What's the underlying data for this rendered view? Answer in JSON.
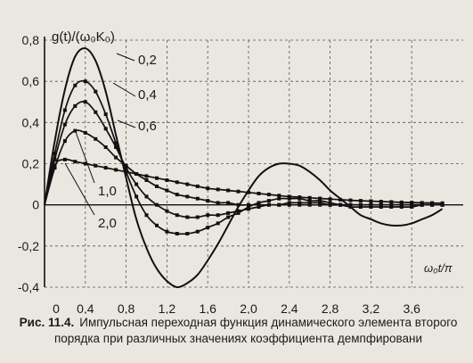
{
  "chart_data": {
    "type": "line",
    "ylabel": "g(t)/(ω₀K₀)",
    "xlabel": "ω₀t/π",
    "xlim": [
      0,
      4
    ],
    "ylim": [
      -0.4,
      0.8
    ],
    "x_ticks": [
      "0",
      "0,4",
      "0,8",
      "1,2",
      "1,6",
      "2,0",
      "2,4",
      "2,8",
      "3,2",
      "3,6"
    ],
    "y_ticks": [
      "0,8",
      "0,6",
      "0,4",
      "0,2",
      "0",
      "-0,2",
      "-0,4"
    ],
    "grid": true,
    "series": [
      {
        "name": "0,2",
        "x": [
          0,
          0.1,
          0.2,
          0.3,
          0.4,
          0.5,
          0.6,
          0.7,
          0.8,
          0.9,
          1.0,
          1.1,
          1.2,
          1.3,
          1.4,
          1.5,
          1.6,
          1.7,
          1.8,
          1.9,
          2.0,
          2.1,
          2.2,
          2.3,
          2.4,
          2.5,
          2.6,
          2.7,
          2.8,
          2.9,
          3.0,
          3.1,
          3.2,
          3.3,
          3.4,
          3.5,
          3.6,
          3.7,
          3.8,
          3.9
        ],
        "values": [
          0,
          0.31,
          0.56,
          0.72,
          0.76,
          0.7,
          0.55,
          0.34,
          0.13,
          -0.07,
          -0.21,
          -0.31,
          -0.37,
          -0.4,
          -0.38,
          -0.34,
          -0.27,
          -0.19,
          -0.1,
          -0.01,
          0.07,
          0.14,
          0.18,
          0.2,
          0.2,
          0.19,
          0.16,
          0.12,
          0.07,
          0.03,
          -0.01,
          -0.05,
          -0.07,
          -0.09,
          -0.1,
          -0.1,
          -0.09,
          -0.07,
          -0.05,
          -0.02
        ],
        "markers": false
      },
      {
        "name": "0,4",
        "x": [
          0,
          0.1,
          0.2,
          0.3,
          0.4,
          0.5,
          0.6,
          0.7,
          0.8,
          0.9,
          1.0,
          1.1,
          1.2,
          1.3,
          1.4,
          1.5,
          1.6,
          1.7,
          1.8,
          1.9,
          2.0,
          2.1,
          2.2,
          2.3,
          2.4,
          2.5,
          2.6,
          2.7,
          2.8,
          2.9,
          3.0,
          3.1,
          3.2,
          3.3,
          3.4,
          3.5,
          3.6,
          3.7,
          3.8,
          3.9
        ],
        "values": [
          0,
          0.25,
          0.46,
          0.58,
          0.6,
          0.55,
          0.44,
          0.3,
          0.16,
          0.04,
          -0.05,
          -0.1,
          -0.13,
          -0.14,
          -0.14,
          -0.13,
          -0.11,
          -0.09,
          -0.06,
          -0.04,
          -0.01,
          0.01,
          0.02,
          0.03,
          0.03,
          0.03,
          0.02,
          0.02,
          0.01,
          0.0,
          -0.01,
          -0.01,
          -0.01,
          -0.01,
          -0.01,
          -0.01,
          -0.01,
          0.0,
          0.0,
          0.0
        ],
        "markers": true
      },
      {
        "name": "0,6",
        "x": [
          0,
          0.1,
          0.2,
          0.3,
          0.4,
          0.5,
          0.6,
          0.7,
          0.8,
          0.9,
          1.0,
          1.1,
          1.2,
          1.3,
          1.4,
          1.5,
          1.6,
          1.7,
          1.8,
          1.9,
          2.0,
          2.1,
          2.2,
          2.3,
          2.4,
          2.5,
          2.6,
          2.7,
          2.8,
          2.9,
          3.0,
          3.1,
          3.2,
          3.3,
          3.4,
          3.5,
          3.6,
          3.7,
          3.8,
          3.9
        ],
        "values": [
          0,
          0.22,
          0.39,
          0.48,
          0.5,
          0.45,
          0.37,
          0.28,
          0.18,
          0.1,
          0.04,
          0.0,
          -0.03,
          -0.05,
          -0.06,
          -0.06,
          -0.05,
          -0.05,
          -0.04,
          -0.03,
          -0.02,
          -0.01,
          0.0,
          0.0,
          0.01,
          0.01,
          0.01,
          0.01,
          0.0,
          0.0,
          0.0,
          0.0,
          0.0,
          0.0,
          0.0,
          0.0,
          0.0,
          0.0,
          0.0,
          0.0
        ],
        "markers": true
      },
      {
        "name": "1,0",
        "x": [
          0,
          0.1,
          0.2,
          0.3,
          0.4,
          0.5,
          0.6,
          0.7,
          0.8,
          0.9,
          1.0,
          1.1,
          1.2,
          1.3,
          1.4,
          1.5,
          1.6,
          1.7,
          1.8,
          1.9,
          2.0,
          2.1,
          2.2,
          2.3,
          2.4,
          2.5,
          2.6,
          2.7,
          2.8,
          2.9,
          3.0,
          3.1,
          3.2,
          3.3,
          3.4,
          3.5,
          3.6,
          3.7,
          3.8,
          3.9
        ],
        "values": [
          0,
          0.18,
          0.31,
          0.36,
          0.35,
          0.32,
          0.28,
          0.23,
          0.19,
          0.15,
          0.12,
          0.09,
          0.07,
          0.05,
          0.04,
          0.03,
          0.02,
          0.01,
          0.01,
          0.0,
          0.0,
          0.0,
          0.0,
          0.0,
          0.0,
          0.0,
          0.0,
          0.0,
          0.0,
          0.0,
          0.0,
          0.0,
          0.0,
          0.0,
          0.0,
          0.0,
          0.0,
          0.0,
          0.0,
          0.0
        ],
        "markers": true
      },
      {
        "name": "2,0",
        "x": [
          0,
          0.1,
          0.2,
          0.3,
          0.4,
          0.5,
          0.6,
          0.7,
          0.8,
          0.9,
          1.0,
          1.1,
          1.2,
          1.3,
          1.4,
          1.5,
          1.6,
          1.7,
          1.8,
          1.9,
          2.0,
          2.1,
          2.2,
          2.3,
          2.4,
          2.5,
          2.6,
          2.7,
          2.8,
          2.9,
          3.0,
          3.1,
          3.2,
          3.3,
          3.4,
          3.5,
          3.6,
          3.7,
          3.8,
          3.9
        ],
        "values": [
          0,
          0.19,
          0.22,
          0.21,
          0.2,
          0.19,
          0.18,
          0.17,
          0.16,
          0.15,
          0.14,
          0.13,
          0.12,
          0.11,
          0.1,
          0.09,
          0.08,
          0.075,
          0.07,
          0.065,
          0.06,
          0.055,
          0.05,
          0.045,
          0.04,
          0.037,
          0.034,
          0.031,
          0.028,
          0.025,
          0.022,
          0.02,
          0.018,
          0.016,
          0.014,
          0.012,
          0.011,
          0.01,
          0.009,
          0.008
        ],
        "markers": true
      }
    ],
    "curve_labels": [
      {
        "text": "0,2"
      },
      {
        "text": "0,4"
      },
      {
        "text": "0,6"
      },
      {
        "text": "1,0"
      },
      {
        "text": "2,0"
      }
    ]
  },
  "caption": {
    "lead": "Рис. 11.4.",
    "text": "Импульсная переходная функция динамического элемента второго порядка при различных значениях коэффициента демпфировани"
  }
}
